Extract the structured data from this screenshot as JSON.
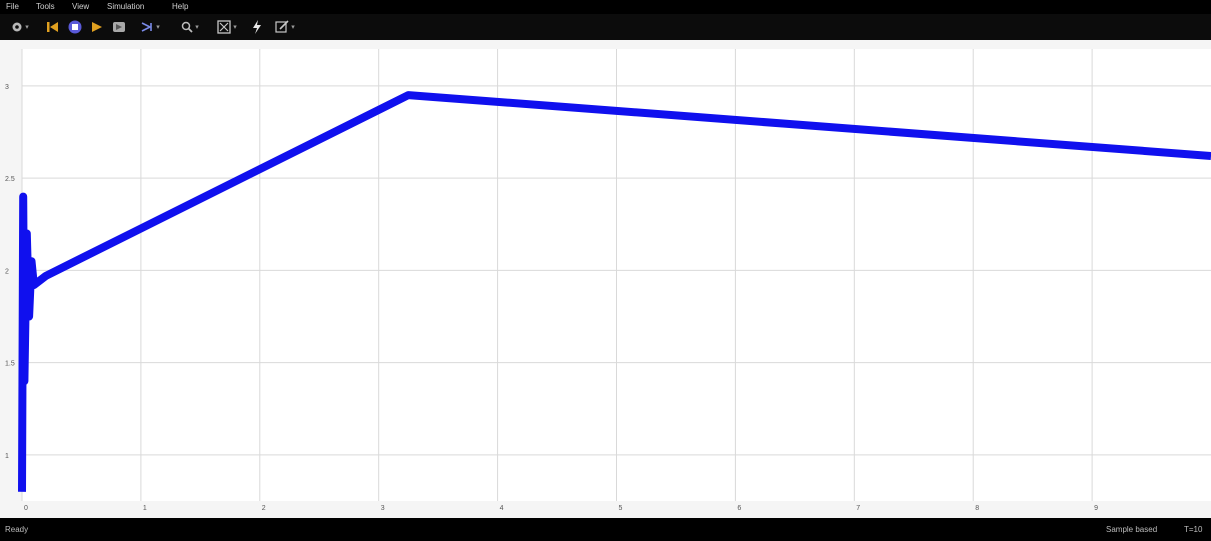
{
  "menu": {
    "items": [
      "File",
      "Tools",
      "View",
      "Simulation",
      "Help"
    ]
  },
  "toolbar": {
    "buttons": [
      {
        "icon": "settings-icon",
        "dropdown": true
      },
      {
        "icon": "step-back-icon",
        "dropdown": false
      },
      {
        "icon": "stop-icon",
        "dropdown": false
      },
      {
        "icon": "run-icon",
        "dropdown": false
      },
      {
        "icon": "step-forward-icon",
        "dropdown": false
      },
      {
        "icon": "highlight-icon",
        "dropdown": true
      },
      {
        "icon": "zoom-icon",
        "dropdown": true
      },
      {
        "icon": "fit-axes-icon",
        "dropdown": true
      },
      {
        "icon": "trigger-icon",
        "dropdown": false
      },
      {
        "icon": "edit-icon",
        "dropdown": true
      }
    ]
  },
  "colors": {
    "signal": "#1010ee",
    "grid": "#d9d9d9",
    "plot_bg": "#ffffff",
    "frame_bg": "#f5f5f5"
  },
  "chart_data": {
    "type": "line",
    "title": "",
    "xlabel": "",
    "ylabel": "",
    "xlim": [
      0,
      10
    ],
    "ylim": [
      0.75,
      3.2
    ],
    "x_ticks": [
      "0",
      "1",
      "2",
      "3",
      "4",
      "5",
      "6",
      "7",
      "8",
      "9"
    ],
    "y_ticks": [
      "1",
      "1.5",
      "2",
      "2.5",
      "3"
    ],
    "grid": true,
    "series": [
      {
        "x": [
          0,
          0.01,
          0.02,
          0.04,
          0.06,
          0.08,
          0.1,
          0.2,
          3.25,
          10
        ],
        "y": [
          0.8,
          2.4,
          1.4,
          2.2,
          1.75,
          2.05,
          1.92,
          1.97,
          2.95,
          2.62
        ]
      }
    ]
  },
  "status": {
    "left": "Ready",
    "mode": "Sample based",
    "time": "T=10"
  }
}
